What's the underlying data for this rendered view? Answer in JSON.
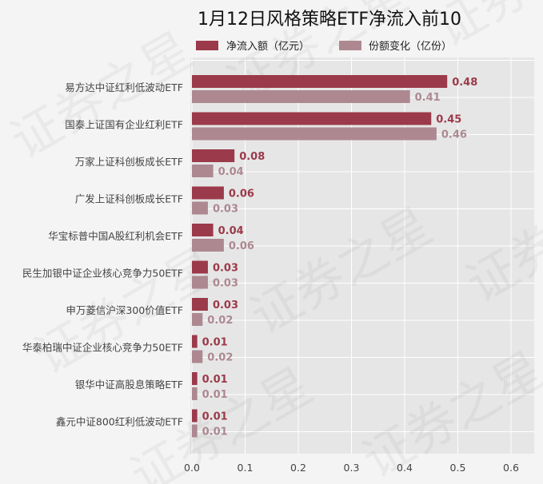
{
  "chart_data": {
    "type": "bar",
    "orientation": "horizontal",
    "title": "1月12日风格策略ETF净流入前10",
    "categories": [
      "易方达中证红利低波动ETF",
      "国泰上证国有企业红利ETF",
      "万家上证科创板成长ETF",
      "广发上证科创板成长ETF",
      "华宝标普中国A股红利机会ETF",
      "民生加银中证企业核心竞争力50ETF",
      "申万菱信沪深300价值ETF",
      "华泰柏瑞中证企业核心竞争力50ETF",
      "银华中证高股息策略ETF",
      "鑫元中证800红利低波动ETF"
    ],
    "series": [
      {
        "name": "净流入额（亿元）",
        "values": [
          0.48,
          0.45,
          0.08,
          0.06,
          0.04,
          0.03,
          0.03,
          0.01,
          0.01,
          0.01
        ],
        "labels": [
          "0.48",
          "0.45",
          "0.08",
          "0.06",
          "0.04",
          "0.03",
          "0.03",
          "0.01",
          "0.01",
          "0.01"
        ],
        "color": "#9b3a4a"
      },
      {
        "name": "份额变化（亿份）",
        "values": [
          0.41,
          0.46,
          0.04,
          0.03,
          0.06,
          0.03,
          0.02,
          0.02,
          0.01,
          0.01
        ],
        "labels": [
          "0.41",
          "0.46",
          "0.04",
          "0.03",
          "0.06",
          "0.03",
          "0.02",
          "0.02",
          "0.01",
          "0.01"
        ],
        "color": "#ad8891"
      }
    ],
    "xlim": [
      0,
      0.65
    ],
    "xticks": [
      0,
      0.1,
      0.2,
      0.3,
      0.4,
      0.5,
      0.6
    ],
    "xtick_labels": [
      "0.0",
      "0.1",
      "0.2",
      "0.3",
      "0.4",
      "0.5",
      "0.6"
    ],
    "grid": true,
    "legend_position": "top",
    "watermark": "证券之星"
  }
}
